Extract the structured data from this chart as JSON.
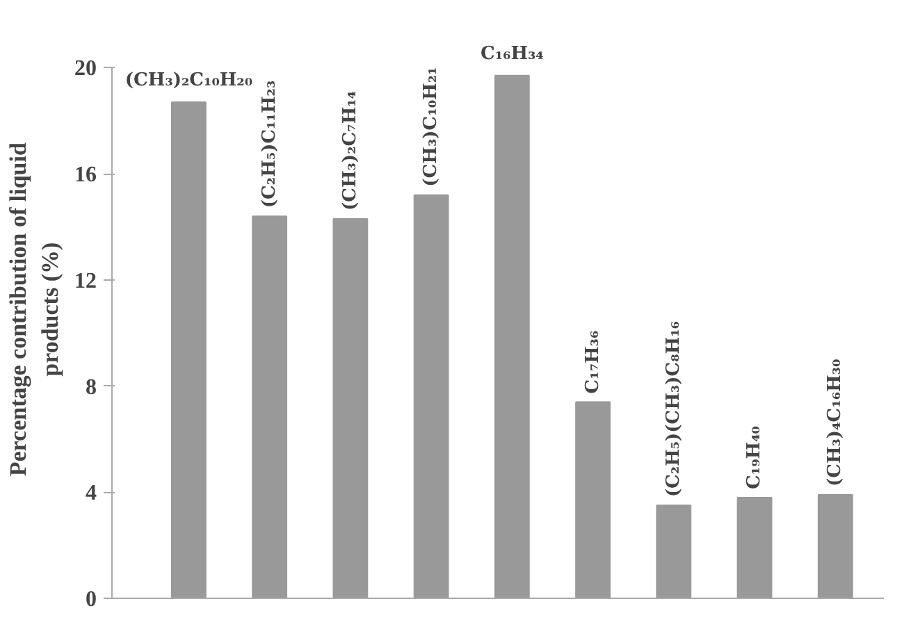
{
  "chart_data": {
    "type": "bar",
    "ylabel": "Percentage contribution  of liquid\nproducts  (%)",
    "categories": [
      "(CH₃)₂C₁₀H₂₀",
      "(C₂H₅)C₁₁H₂₃",
      "(CH₃)₂C₇H₁₄",
      "(CH₃)C₁₀H₂₁",
      "C₁₆H₃₄",
      "C₁₇H₃₆",
      "(C₂H₅)(CH₃)C₈H₁₆",
      "C₁₉H₄₀",
      "(CH₃)₄C₁₆H₃₀"
    ],
    "values": [
      18.7,
      14.4,
      14.3,
      15.2,
      19.7,
      7.4,
      3.5,
      3.8,
      3.9
    ],
    "color": "#999999",
    "ylim": [
      0,
      20
    ],
    "yticks": [
      0,
      4,
      8,
      12,
      16,
      20
    ],
    "grid": false
  }
}
